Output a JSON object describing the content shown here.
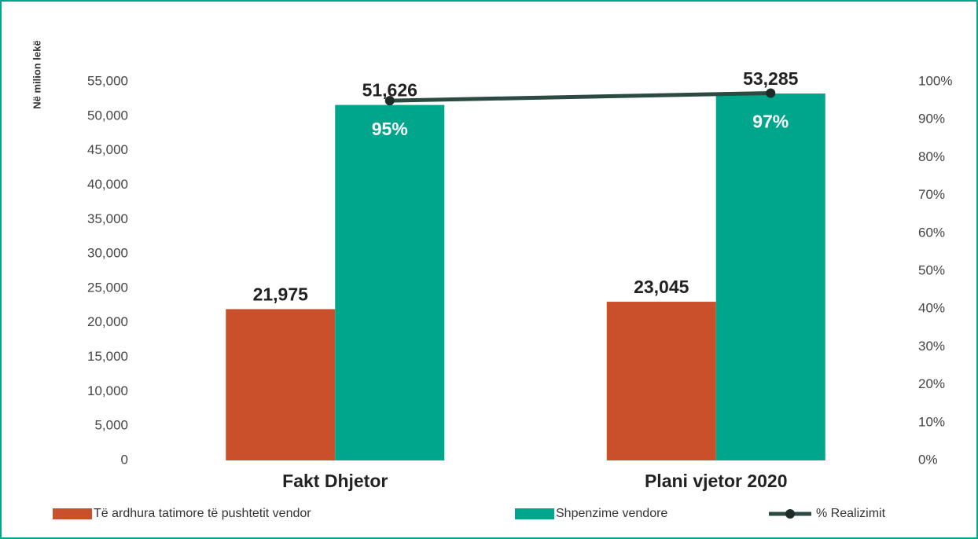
{
  "chart_data": {
    "type": "bar",
    "y_axis_label": "Në milion lekë",
    "categories": [
      "Fakt Dhjetor",
      "Plani vjetor 2020"
    ],
    "series": [
      {
        "name": "Të ardhura tatimore të pushtetit vendor",
        "color": "#c9502a",
        "values": [
          21975,
          23045
        ],
        "value_labels": [
          "21,975",
          "23,045"
        ]
      },
      {
        "name": "Shpenzime vendore",
        "color": "#00a68c",
        "values": [
          51626,
          53285
        ],
        "value_labels": [
          "51,626",
          "53,285"
        ]
      },
      {
        "name": "% Realizimit",
        "type": "line",
        "axis": "y2",
        "color": "#2b4a42",
        "values": [
          95,
          97
        ],
        "value_labels": [
          "95%",
          "97%"
        ]
      }
    ],
    "ylim": [
      0,
      55000
    ],
    "yticks": [
      0,
      {
        "value": 5000,
        "label": "5,000"
      },
      {
        "value": 10000,
        "label": "10,000"
      },
      {
        "value": 15000,
        "label": "15,000"
      },
      {
        "value": 20000,
        "label": "20,000"
      },
      {
        "value": 25000,
        "label": "25,000"
      },
      {
        "value": 30000,
        "label": "30,000"
      },
      {
        "value": 35000,
        "label": "35,000"
      },
      {
        "value": 40000,
        "label": "40,000"
      },
      {
        "value": 45000,
        "label": "45,000"
      },
      {
        "value": 50000,
        "label": "50,000"
      },
      {
        "value": 55000,
        "label": "55,000"
      }
    ],
    "y2lim": [
      0,
      100
    ],
    "y2ticks": [
      {
        "value": 0,
        "label": "0%"
      },
      {
        "value": 10,
        "label": "10%"
      },
      {
        "value": 20,
        "label": "20%"
      },
      {
        "value": 30,
        "label": "30%"
      },
      {
        "value": 40,
        "label": "40%"
      },
      {
        "value": 50,
        "label": "50%"
      },
      {
        "value": 60,
        "label": "60%"
      },
      {
        "value": 70,
        "label": "70%"
      },
      {
        "value": 80,
        "label": "80%"
      },
      {
        "value": 90,
        "label": "90%"
      },
      {
        "value": 100,
        "label": "100%"
      }
    ],
    "grid": false,
    "legend": "bottom"
  }
}
